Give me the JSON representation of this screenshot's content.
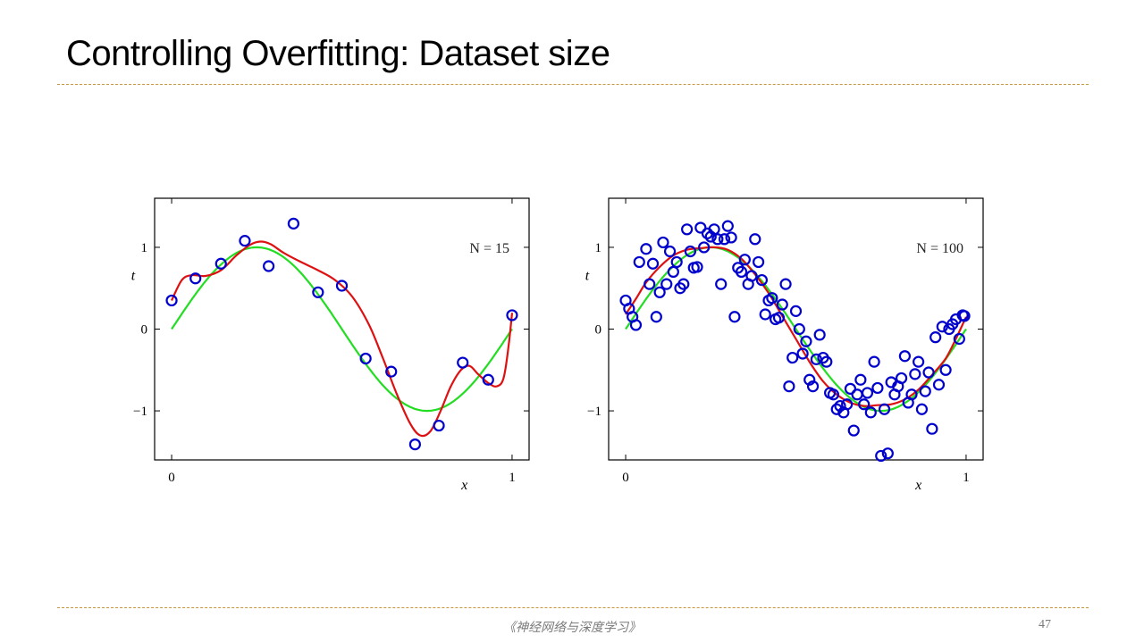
{
  "slide": {
    "title": "Controlling Overfitting: Dataset size",
    "footer": "《神经网络与深度学习》",
    "page_number": "47"
  },
  "colors": {
    "rule": "#c8963e",
    "points": "#0000cc",
    "true_curve": "#22dd22",
    "fit_curve": "#dd1111"
  },
  "chart_data": [
    {
      "type": "scatter",
      "label": "N = 15",
      "xlabel": "x",
      "ylabel": "t",
      "xlim": [
        -0.05,
        1.05
      ],
      "ylim": [
        -1.6,
        1.6
      ],
      "xticks": [
        {
          "v": 0,
          "label": "0"
        },
        {
          "v": 1,
          "label": "1"
        }
      ],
      "yticks": [
        {
          "v": 1,
          "label": "1"
        },
        {
          "v": 0,
          "label": "0"
        },
        {
          "v": -1,
          "label": "−1"
        }
      ],
      "points": [
        [
          0.0,
          0.35
        ],
        [
          0.07,
          0.62
        ],
        [
          0.145,
          0.8
        ],
        [
          0.215,
          1.08
        ],
        [
          0.285,
          0.77
        ],
        [
          0.358,
          1.29
        ],
        [
          0.43,
          0.45
        ],
        [
          0.5,
          0.53
        ],
        [
          0.57,
          -0.36
        ],
        [
          0.645,
          -0.52
        ],
        [
          0.715,
          -1.41
        ],
        [
          0.785,
          -1.18
        ],
        [
          0.855,
          -0.41
        ],
        [
          0.93,
          -0.62
        ],
        [
          1.0,
          0.17
        ]
      ],
      "true_curve": "sin(2πx)",
      "fit_curve": [
        [
          0.0,
          0.35
        ],
        [
          0.03,
          0.6
        ],
        [
          0.06,
          0.66
        ],
        [
          0.1,
          0.65
        ],
        [
          0.145,
          0.72
        ],
        [
          0.19,
          0.9
        ],
        [
          0.23,
          1.03
        ],
        [
          0.26,
          1.07
        ],
        [
          0.29,
          1.04
        ],
        [
          0.33,
          0.93
        ],
        [
          0.38,
          0.82
        ],
        [
          0.43,
          0.72
        ],
        [
          0.48,
          0.6
        ],
        [
          0.53,
          0.4
        ],
        [
          0.58,
          0.05
        ],
        [
          0.62,
          -0.35
        ],
        [
          0.66,
          -0.78
        ],
        [
          0.7,
          -1.15
        ],
        [
          0.73,
          -1.3
        ],
        [
          0.76,
          -1.25
        ],
        [
          0.79,
          -1.0
        ],
        [
          0.82,
          -0.7
        ],
        [
          0.85,
          -0.5
        ],
        [
          0.875,
          -0.45
        ],
        [
          0.9,
          -0.55
        ],
        [
          0.93,
          -0.66
        ],
        [
          0.955,
          -0.7
        ],
        [
          0.975,
          -0.6
        ],
        [
          0.99,
          -0.2
        ],
        [
          1.0,
          0.2
        ]
      ]
    },
    {
      "type": "scatter",
      "label": "N = 100",
      "xlabel": "x",
      "ylabel": "t",
      "xlim": [
        -0.05,
        1.05
      ],
      "ylim": [
        -1.6,
        1.6
      ],
      "xticks": [
        {
          "v": 0,
          "label": "0"
        },
        {
          "v": 1,
          "label": "1"
        }
      ],
      "yticks": [
        {
          "v": 1,
          "label": "1"
        },
        {
          "v": 0,
          "label": "0"
        },
        {
          "v": -1,
          "label": "−1"
        }
      ],
      "points": [
        [
          0.0,
          0.35
        ],
        [
          0.01,
          0.25
        ],
        [
          0.02,
          0.15
        ],
        [
          0.03,
          0.05
        ],
        [
          0.04,
          0.82
        ],
        [
          0.06,
          0.98
        ],
        [
          0.07,
          0.55
        ],
        [
          0.08,
          0.8
        ],
        [
          0.09,
          0.15
        ],
        [
          0.1,
          0.45
        ],
        [
          0.11,
          1.06
        ],
        [
          0.12,
          0.55
        ],
        [
          0.13,
          0.95
        ],
        [
          0.14,
          0.7
        ],
        [
          0.15,
          0.82
        ],
        [
          0.16,
          0.5
        ],
        [
          0.17,
          0.55
        ],
        [
          0.18,
          1.22
        ],
        [
          0.19,
          0.95
        ],
        [
          0.2,
          0.75
        ],
        [
          0.21,
          0.76
        ],
        [
          0.22,
          1.24
        ],
        [
          0.23,
          1.0
        ],
        [
          0.24,
          1.17
        ],
        [
          0.25,
          1.13
        ],
        [
          0.26,
          1.22
        ],
        [
          0.27,
          1.1
        ],
        [
          0.28,
          0.55
        ],
        [
          0.29,
          1.1
        ],
        [
          0.3,
          1.26
        ],
        [
          0.31,
          1.12
        ],
        [
          0.32,
          0.15
        ],
        [
          0.33,
          0.75
        ],
        [
          0.34,
          0.7
        ],
        [
          0.35,
          0.85
        ],
        [
          0.36,
          0.55
        ],
        [
          0.37,
          0.65
        ],
        [
          0.38,
          1.1
        ],
        [
          0.39,
          0.82
        ],
        [
          0.4,
          0.6
        ],
        [
          0.41,
          0.18
        ],
        [
          0.42,
          0.35
        ],
        [
          0.43,
          0.38
        ],
        [
          0.44,
          0.12
        ],
        [
          0.45,
          0.14
        ],
        [
          0.46,
          0.3
        ],
        [
          0.47,
          0.55
        ],
        [
          0.48,
          -0.7
        ],
        [
          0.49,
          -0.35
        ],
        [
          0.5,
          0.22
        ],
        [
          0.51,
          0.0
        ],
        [
          0.52,
          -0.3
        ],
        [
          0.53,
          -0.15
        ],
        [
          0.54,
          -0.62
        ],
        [
          0.55,
          -0.7
        ],
        [
          0.56,
          -0.37
        ],
        [
          0.57,
          -0.07
        ],
        [
          0.58,
          -0.35
        ],
        [
          0.59,
          -0.4
        ],
        [
          0.6,
          -0.78
        ],
        [
          0.61,
          -0.8
        ],
        [
          0.62,
          -0.98
        ],
        [
          0.63,
          -0.94
        ],
        [
          0.64,
          -1.02
        ],
        [
          0.65,
          -0.92
        ],
        [
          0.66,
          -0.73
        ],
        [
          0.67,
          -1.24
        ],
        [
          0.68,
          -0.8
        ],
        [
          0.69,
          -0.62
        ],
        [
          0.7,
          -0.92
        ],
        [
          0.71,
          -0.78
        ],
        [
          0.72,
          -1.02
        ],
        [
          0.73,
          -0.4
        ],
        [
          0.74,
          -0.72
        ],
        [
          0.75,
          -1.55
        ],
        [
          0.76,
          -0.98
        ],
        [
          0.77,
          -1.52
        ],
        [
          0.78,
          -0.65
        ],
        [
          0.79,
          -0.8
        ],
        [
          0.8,
          -0.7
        ],
        [
          0.81,
          -0.6
        ],
        [
          0.82,
          -0.33
        ],
        [
          0.83,
          -0.9
        ],
        [
          0.84,
          -0.8
        ],
        [
          0.85,
          -0.55
        ],
        [
          0.86,
          -0.4
        ],
        [
          0.87,
          -0.98
        ],
        [
          0.88,
          -0.76
        ],
        [
          0.89,
          -0.53
        ],
        [
          0.9,
          -1.22
        ],
        [
          0.91,
          -0.1
        ],
        [
          0.92,
          -0.68
        ],
        [
          0.93,
          0.03
        ],
        [
          0.94,
          -0.5
        ],
        [
          0.95,
          0.0
        ],
        [
          0.96,
          0.06
        ],
        [
          0.97,
          0.12
        ],
        [
          0.98,
          -0.12
        ],
        [
          0.99,
          0.17
        ],
        [
          0.995,
          0.16
        ]
      ],
      "true_curve": "sin(2πx)",
      "fit_curve": [
        [
          0.0,
          0.18
        ],
        [
          0.03,
          0.37
        ],
        [
          0.06,
          0.57
        ],
        [
          0.1,
          0.76
        ],
        [
          0.14,
          0.9
        ],
        [
          0.18,
          0.97
        ],
        [
          0.22,
          0.99
        ],
        [
          0.26,
          1.0
        ],
        [
          0.3,
          0.97
        ],
        [
          0.34,
          0.86
        ],
        [
          0.38,
          0.67
        ],
        [
          0.42,
          0.44
        ],
        [
          0.46,
          0.16
        ],
        [
          0.5,
          -0.12
        ],
        [
          0.54,
          -0.4
        ],
        [
          0.58,
          -0.64
        ],
        [
          0.62,
          -0.8
        ],
        [
          0.66,
          -0.9
        ],
        [
          0.7,
          -0.94
        ],
        [
          0.74,
          -0.93
        ],
        [
          0.78,
          -0.92
        ],
        [
          0.82,
          -0.86
        ],
        [
          0.86,
          -0.74
        ],
        [
          0.9,
          -0.56
        ],
        [
          0.94,
          -0.36
        ],
        [
          0.97,
          -0.12
        ],
        [
          1.0,
          0.15
        ]
      ]
    }
  ]
}
